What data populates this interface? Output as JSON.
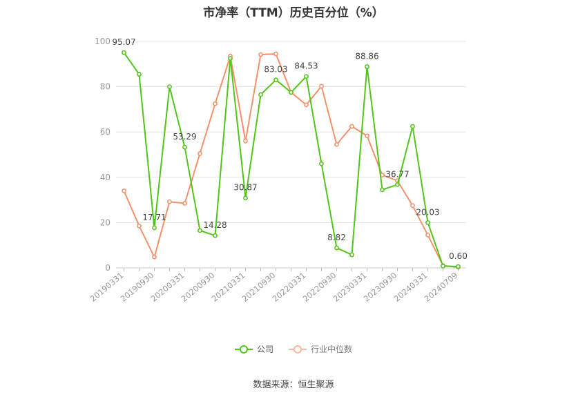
{
  "chart_data": {
    "type": "line",
    "title": "市净率（TTM）历史百分位（%）",
    "xlabel": "",
    "ylabel": "",
    "ylim": [
      0,
      100
    ],
    "yticks": [
      0,
      20,
      40,
      60,
      80,
      100
    ],
    "x": [
      "20190331",
      "",
      "20190930",
      "",
      "20200331",
      "",
      "20200930",
      "",
      "20210331",
      "",
      "20210930",
      "",
      "20220331",
      "",
      "20220930",
      "",
      "20230331",
      "",
      "20230930",
      "",
      "20240331",
      "",
      "20240709"
    ],
    "grid": true,
    "legend_position": "bottom",
    "series": [
      {
        "name": "公司",
        "color": "#52c41a",
        "values": [
          95.07,
          85.5,
          17.71,
          80.0,
          53.29,
          16.5,
          14.28,
          92.5,
          30.87,
          76.5,
          83.03,
          77.5,
          84.53,
          46.0,
          8.82,
          5.8,
          88.86,
          34.5,
          36.77,
          62.5,
          20.03,
          0.8,
          0.6
        ],
        "data_labels": {
          "0": "95.07",
          "2": "17.71",
          "4": "53.29",
          "6": "14.28",
          "8": "30.87",
          "10": "83.03",
          "12": "84.53",
          "14": "8.82",
          "16": "88.86",
          "18": "36.77",
          "20": "20.03",
          "22": "0.60"
        }
      },
      {
        "name": "行业中位数",
        "color": "#f4916a",
        "values": [
          34.0,
          18.5,
          4.8,
          29.2,
          28.5,
          50.5,
          72.5,
          93.5,
          56.0,
          94.2,
          94.5,
          77.5,
          72.0,
          80.2,
          54.5,
          62.5,
          58.3,
          41.0,
          38.5,
          27.5,
          14.5,
          1.0,
          0.3
        ]
      }
    ]
  },
  "legend": [
    {
      "label": "公司",
      "color": "#52c41a"
    },
    {
      "label": "行业中位数",
      "color": "#f4916a"
    }
  ],
  "source": "数据来源：恒生聚源"
}
